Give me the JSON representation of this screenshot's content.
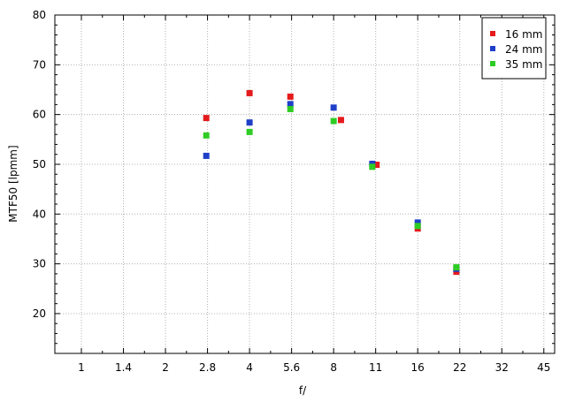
{
  "chart_data": {
    "type": "scatter",
    "xlabel": "f/",
    "ylabel": "MTF50 [lpmm]",
    "x_ticks": [
      "1",
      "1.4",
      "2",
      "2.8",
      "4",
      "5.6",
      "8",
      "11",
      "16",
      "22",
      "32",
      "45"
    ],
    "ylim": [
      12,
      80
    ],
    "y_ticks": [
      20,
      30,
      40,
      50,
      60,
      70,
      80
    ],
    "grid": true,
    "legend_position": "top-right",
    "series": [
      {
        "name": "16 mm",
        "color": "#e41a1c",
        "points": [
          {
            "f": 2.8,
            "y": 59.3
          },
          {
            "f": 4,
            "y": 64.3
          },
          {
            "f": 5.6,
            "y": 63.6
          },
          {
            "f": 8.5,
            "y": 58.9
          },
          {
            "f": 11.4,
            "y": 49.9
          },
          {
            "f": 16,
            "y": 37.1
          },
          {
            "f": 22,
            "y": 28.4
          }
        ]
      },
      {
        "name": "24 mm",
        "color": "#1f3fc8",
        "points": [
          {
            "f": 2.8,
            "y": 51.7
          },
          {
            "f": 4,
            "y": 58.4
          },
          {
            "f": 5.6,
            "y": 62.1
          },
          {
            "f": 8,
            "y": 61.4
          },
          {
            "f": 11,
            "y": 50.1
          },
          {
            "f": 16,
            "y": 38.3
          },
          {
            "f": 22,
            "y": 29.0
          }
        ]
      },
      {
        "name": "35 mm",
        "color": "#2ecc24",
        "points": [
          {
            "f": 2.8,
            "y": 55.8
          },
          {
            "f": 4,
            "y": 56.5
          },
          {
            "f": 5.6,
            "y": 61.1
          },
          {
            "f": 8,
            "y": 58.7
          },
          {
            "f": 11,
            "y": 49.5
          },
          {
            "f": 16,
            "y": 37.6
          },
          {
            "f": 22,
            "y": 29.3
          }
        ]
      }
    ]
  }
}
